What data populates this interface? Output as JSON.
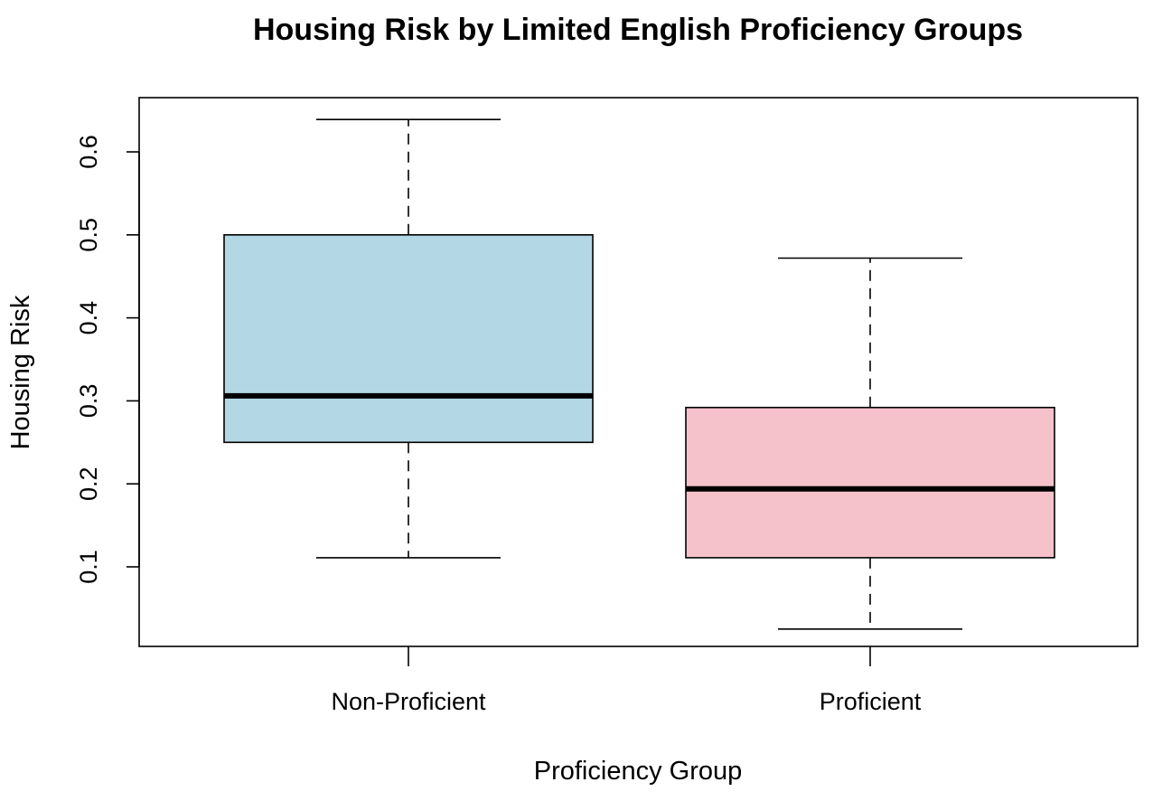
{
  "chart_data": {
    "type": "boxplot",
    "title": "Housing Risk by Limited English Proficiency Groups",
    "xlabel": "Proficiency Group",
    "ylabel": "Housing Risk",
    "ylim": [
      0.0,
      0.66
    ],
    "yticks": [
      "0.1",
      "0.2",
      "0.3",
      "0.4",
      "0.5",
      "0.6"
    ],
    "categories": [
      "Non-Proficient",
      "Proficient"
    ],
    "boxes": [
      {
        "category": "Non-Proficient",
        "min": 0.111,
        "q1": 0.25,
        "median": 0.306,
        "q3": 0.5,
        "max": 0.639,
        "color": "#b4d7e5"
      },
      {
        "category": "Proficient",
        "min": 0.025,
        "q1": 0.111,
        "median": 0.194,
        "q3": 0.292,
        "max": 0.472,
        "color": "#f5c2cb"
      }
    ],
    "grid": false,
    "legend": "none"
  }
}
